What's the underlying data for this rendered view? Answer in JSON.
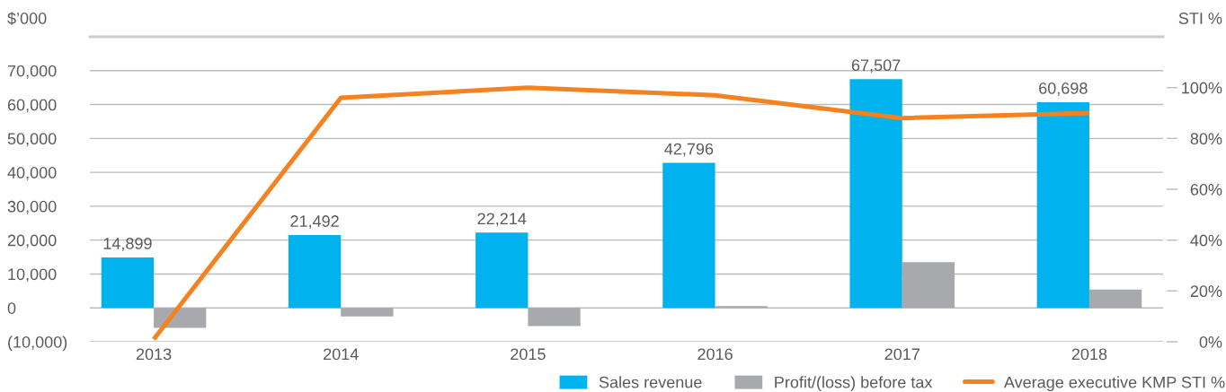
{
  "chart_data": {
    "type": "bar",
    "ylabel": "$’000",
    "y2label": "STI %",
    "categories": [
      "2013",
      "2014",
      "2015",
      "2016",
      "2017",
      "2018"
    ],
    "series": [
      {
        "name": "Sales revenue",
        "color": "#00b2ee",
        "values": [
          14899,
          21492,
          22214,
          42796,
          67507,
          60698
        ],
        "value_labels": [
          "14,899",
          "21,492",
          "22,214",
          "42,796",
          "67,507",
          "60,698"
        ]
      },
      {
        "name": "Profit/(loss) before tax",
        "color": "#a7a9ac",
        "values": [
          -5900,
          -2500,
          -5400,
          500,
          13500,
          5400
        ]
      },
      {
        "name": "Average executive KMP STI %",
        "type": "line",
        "axis": "y2",
        "color": "#f58220",
        "values": [
          1,
          96,
          100,
          97,
          88,
          90
        ]
      }
    ],
    "ylim": [
      -10000,
      80000
    ],
    "yticks": [
      {
        "value": -10000,
        "label": "(10,000)"
      },
      0,
      {
        "value": 10000,
        "label": "10,000"
      },
      {
        "value": 20000,
        "label": "20,000"
      },
      {
        "value": 30000,
        "label": "30,000"
      },
      {
        "value": 40000,
        "label": "40,000"
      },
      {
        "value": 50000,
        "label": "50,000"
      },
      {
        "value": 60000,
        "label": "60,000"
      },
      {
        "value": 70000,
        "label": "70,000"
      }
    ],
    "y2lim": [
      0,
      120
    ],
    "y2ticks": [
      {
        "value": 0,
        "label": "0%"
      },
      {
        "value": 20,
        "label": "20%"
      },
      {
        "value": 40,
        "label": "40%"
      },
      {
        "value": 60,
        "label": "60%"
      },
      {
        "value": 80,
        "label": "80%"
      },
      {
        "value": 100,
        "label": "100%"
      }
    ],
    "grid": "y",
    "legend": "bottom right",
    "line_style": "solid"
  }
}
